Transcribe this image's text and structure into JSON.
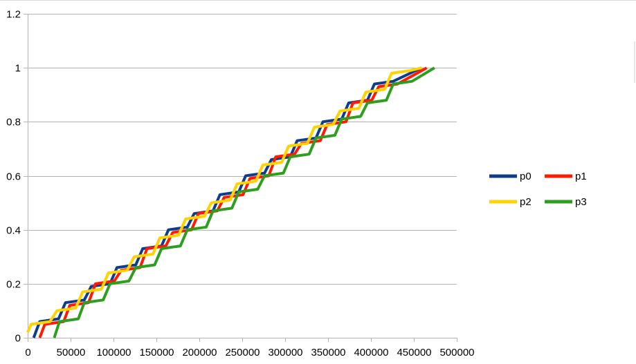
{
  "chart_data": {
    "type": "line",
    "title": "",
    "xlabel": "",
    "ylabel": "",
    "xlim": [
      0,
      500000
    ],
    "ylim": [
      0,
      1.2
    ],
    "x_ticks": [
      "0",
      "50000",
      "100000",
      "150000",
      "200000",
      "250000",
      "300000",
      "350000",
      "400000",
      "450000",
      "500000"
    ],
    "y_ticks": [
      "0",
      "0.2",
      "0.4",
      "0.6",
      "0.8",
      "1",
      "1.2"
    ],
    "grid": "horizontal",
    "legend_position": "right",
    "series": [
      {
        "name": "p0",
        "color": "#0e3d8c",
        "points": [
          [
            7000,
            0
          ],
          [
            14000,
            0.06
          ],
          [
            36000,
            0.07
          ],
          [
            44000,
            0.13
          ],
          [
            66000,
            0.14
          ],
          [
            74000,
            0.19
          ],
          [
            96000,
            0.2
          ],
          [
            104000,
            0.26
          ],
          [
            126000,
            0.27
          ],
          [
            134000,
            0.33
          ],
          [
            156000,
            0.34
          ],
          [
            164000,
            0.4
          ],
          [
            186000,
            0.41
          ],
          [
            194000,
            0.46
          ],
          [
            216000,
            0.47
          ],
          [
            224000,
            0.53
          ],
          [
            246000,
            0.54
          ],
          [
            254000,
            0.6
          ],
          [
            276000,
            0.61
          ],
          [
            284000,
            0.66
          ],
          [
            306000,
            0.67
          ],
          [
            314000,
            0.73
          ],
          [
            336000,
            0.74
          ],
          [
            344000,
            0.8
          ],
          [
            366000,
            0.81
          ],
          [
            374000,
            0.87
          ],
          [
            396000,
            0.88
          ],
          [
            404000,
            0.94
          ],
          [
            426000,
            0.95
          ],
          [
            459000,
            1.0
          ]
        ]
      },
      {
        "name": "p1",
        "color": "#ff1a00",
        "points": [
          [
            14000,
            0
          ],
          [
            20000,
            0.05
          ],
          [
            42000,
            0.06
          ],
          [
            49000,
            0.12
          ],
          [
            71000,
            0.13
          ],
          [
            79000,
            0.2
          ],
          [
            101000,
            0.21
          ],
          [
            109000,
            0.25
          ],
          [
            131000,
            0.26
          ],
          [
            139000,
            0.33
          ],
          [
            161000,
            0.34
          ],
          [
            169000,
            0.39
          ],
          [
            191000,
            0.4
          ],
          [
            199000,
            0.46
          ],
          [
            221000,
            0.47
          ],
          [
            229000,
            0.52
          ],
          [
            251000,
            0.53
          ],
          [
            259000,
            0.59
          ],
          [
            281000,
            0.6
          ],
          [
            289000,
            0.67
          ],
          [
            311000,
            0.68
          ],
          [
            319000,
            0.72
          ],
          [
            341000,
            0.73
          ],
          [
            349000,
            0.79
          ],
          [
            371000,
            0.8
          ],
          [
            379000,
            0.87
          ],
          [
            401000,
            0.88
          ],
          [
            409000,
            0.93
          ],
          [
            431000,
            0.94
          ],
          [
            465000,
            1.0
          ]
        ]
      },
      {
        "name": "p2",
        "color": "#ffd300",
        "points": [
          [
            0,
            0.02
          ],
          [
            4000,
            0.05
          ],
          [
            26000,
            0.06
          ],
          [
            34000,
            0.1
          ],
          [
            56000,
            0.11
          ],
          [
            64000,
            0.17
          ],
          [
            86000,
            0.18
          ],
          [
            94000,
            0.24
          ],
          [
            116000,
            0.25
          ],
          [
            124000,
            0.3
          ],
          [
            146000,
            0.31
          ],
          [
            154000,
            0.37
          ],
          [
            176000,
            0.38
          ],
          [
            184000,
            0.44
          ],
          [
            206000,
            0.45
          ],
          [
            214000,
            0.5
          ],
          [
            236000,
            0.51
          ],
          [
            244000,
            0.57
          ],
          [
            266000,
            0.58
          ],
          [
            274000,
            0.64
          ],
          [
            296000,
            0.65
          ],
          [
            304000,
            0.71
          ],
          [
            326000,
            0.72
          ],
          [
            334000,
            0.78
          ],
          [
            356000,
            0.79
          ],
          [
            364000,
            0.84
          ],
          [
            386000,
            0.85
          ],
          [
            394000,
            0.91
          ],
          [
            416000,
            0.92
          ],
          [
            424000,
            0.98
          ],
          [
            446000,
            0.99
          ],
          [
            459000,
            1.0
          ]
        ]
      },
      {
        "name": "p3",
        "color": "#2e9e1e",
        "points": [
          [
            31000,
            0
          ],
          [
            37000,
            0.06
          ],
          [
            59000,
            0.07
          ],
          [
            66000,
            0.13
          ],
          [
            88000,
            0.14
          ],
          [
            96000,
            0.2
          ],
          [
            118000,
            0.21
          ],
          [
            126000,
            0.26
          ],
          [
            148000,
            0.27
          ],
          [
            156000,
            0.33
          ],
          [
            178000,
            0.34
          ],
          [
            186000,
            0.4
          ],
          [
            208000,
            0.41
          ],
          [
            216000,
            0.47
          ],
          [
            238000,
            0.48
          ],
          [
            246000,
            0.54
          ],
          [
            268000,
            0.55
          ],
          [
            276000,
            0.6
          ],
          [
            298000,
            0.61
          ],
          [
            306000,
            0.67
          ],
          [
            328000,
            0.68
          ],
          [
            336000,
            0.74
          ],
          [
            358000,
            0.75
          ],
          [
            366000,
            0.81
          ],
          [
            388000,
            0.82
          ],
          [
            396000,
            0.87
          ],
          [
            418000,
            0.88
          ],
          [
            426000,
            0.94
          ],
          [
            448000,
            0.95
          ],
          [
            474000,
            1.0
          ]
        ]
      }
    ]
  }
}
